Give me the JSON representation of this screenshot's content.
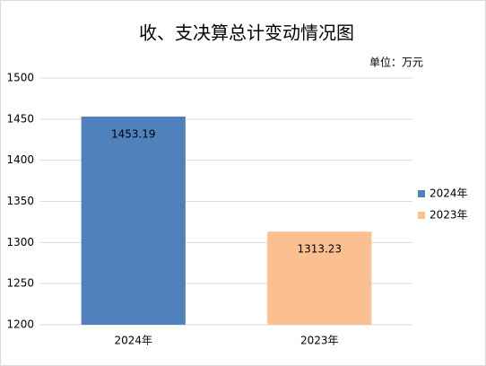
{
  "chart_data": {
    "type": "bar",
    "title": "收、支决算总计变动情况图",
    "unit_label": "单位：万元",
    "categories": [
      "2024年",
      "2023年"
    ],
    "series": [
      {
        "name": "2024年",
        "color": "#4f81bd",
        "values": [
          1453.19,
          null
        ]
      },
      {
        "name": "2023年",
        "color": "#fac090",
        "values": [
          null,
          1313.23
        ]
      }
    ],
    "ylim": [
      1200,
      1500
    ],
    "yticks": [
      1200,
      1250,
      1300,
      1350,
      1400,
      1450,
      1500
    ],
    "grid": true,
    "legend": "right"
  }
}
